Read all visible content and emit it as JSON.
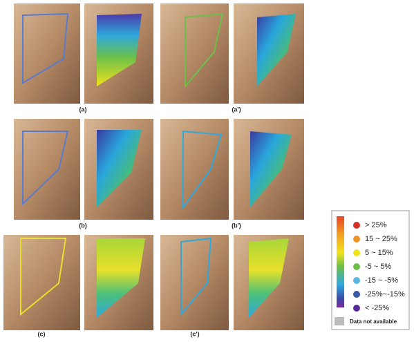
{
  "panels": [
    {
      "label": "(a)"
    },
    {
      "label": "(a')"
    },
    {
      "label": "(b)"
    },
    {
      "label": "(b')"
    },
    {
      "label": "(c)"
    },
    {
      "label": "(c')"
    }
  ],
  "legend": {
    "items": [
      "> 25%",
      "15 ~ 25%",
      "5 ~ 15%",
      "-5 ~ 5%",
      "-15 ~ -5%",
      "-25%~-15%",
      "< -25%"
    ],
    "na_label": "Data not available"
  }
}
